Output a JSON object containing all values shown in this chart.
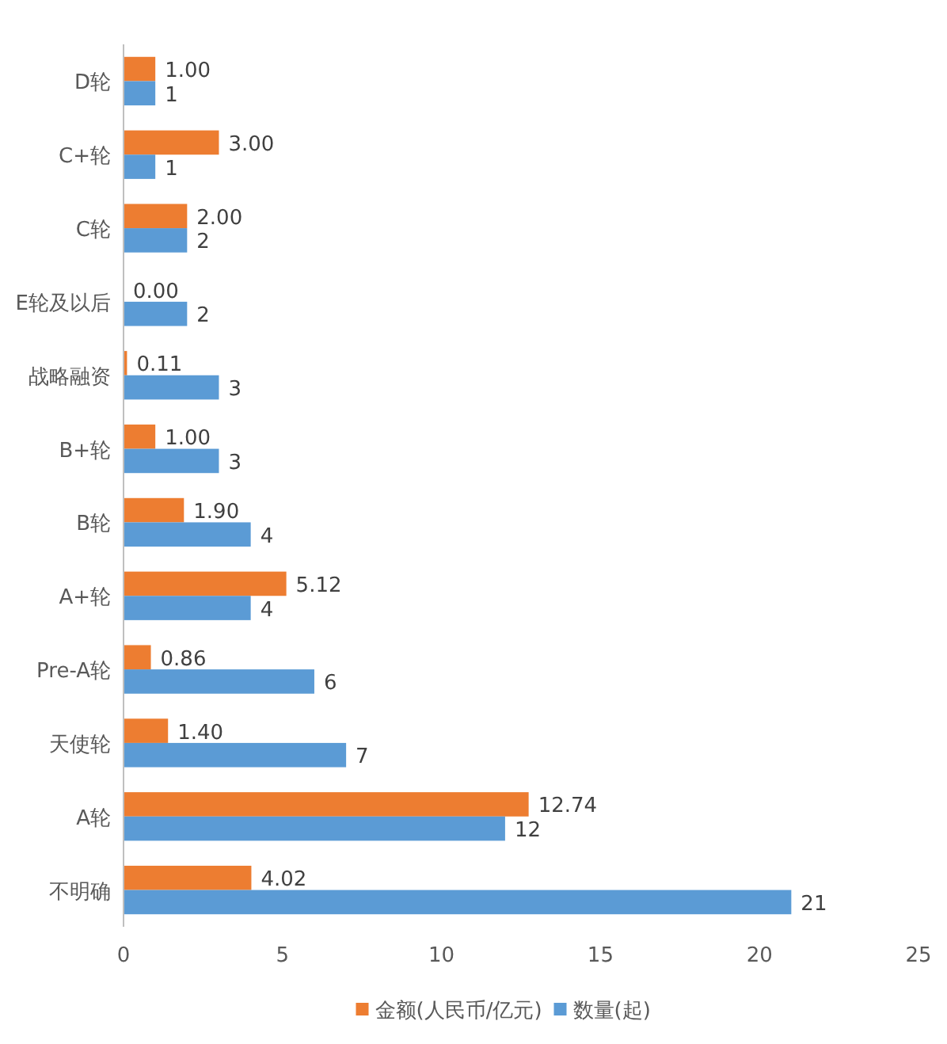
{
  "chart_data": {
    "type": "bar",
    "orientation": "horizontal",
    "categories": [
      "D轮",
      "C+轮",
      "C轮",
      "E轮及以后",
      "战略融资",
      "B+轮",
      "B轮",
      "A+轮",
      "Pre-A轮",
      "天使轮",
      "A轮",
      "不明确"
    ],
    "series": [
      {
        "name": "金额(人民币/亿元)",
        "color": "#ed7d31",
        "values": [
          1.0,
          3.0,
          2.0,
          0.0,
          0.11,
          1.0,
          1.9,
          5.12,
          0.86,
          1.4,
          12.74,
          4.02
        ],
        "value_labels": [
          "1.00",
          "3.00",
          "2.00",
          "0.00",
          "0.11",
          "1.00",
          "1.90",
          "5.12",
          "0.86",
          "1.40",
          "12.74",
          "4.02"
        ]
      },
      {
        "name": "数量(起)",
        "color": "#5b9bd5",
        "values": [
          1,
          1,
          2,
          2,
          3,
          3,
          4,
          4,
          6,
          7,
          12,
          21
        ],
        "value_labels": [
          "1",
          "1",
          "2",
          "2",
          "3",
          "3",
          "4",
          "4",
          "6",
          "7",
          "12",
          "21"
        ]
      }
    ],
    "xlim": [
      0,
      25
    ],
    "xticks": [
      0,
      5,
      10,
      15,
      20,
      25
    ],
    "grid": false,
    "legend": "bottom"
  }
}
